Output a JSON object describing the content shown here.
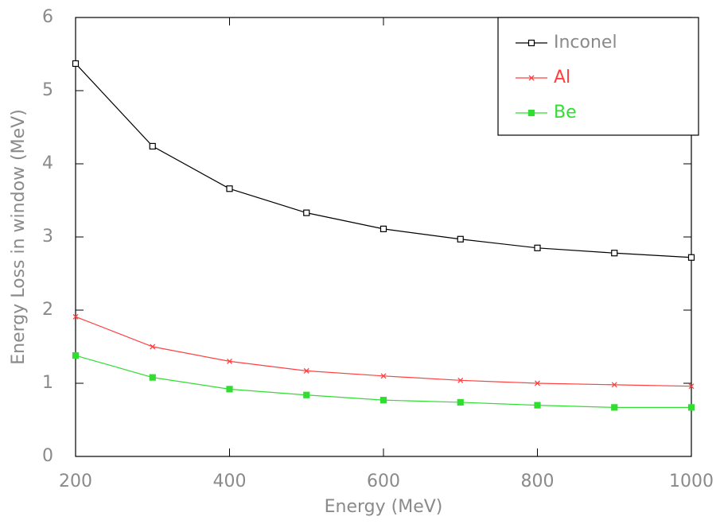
{
  "chart_data": {
    "type": "line",
    "x_label": "Energy (MeV)",
    "y_label": "Energy Loss in window (MeV)",
    "x": [
      200,
      300,
      400,
      500,
      600,
      700,
      800,
      900,
      1000
    ],
    "series": [
      {
        "name": "Inconel",
        "color": "#000000",
        "marker": "open-square",
        "values": [
          5.37,
          4.24,
          3.66,
          3.33,
          3.11,
          2.97,
          2.85,
          2.78,
          2.72
        ]
      },
      {
        "name": "Al",
        "color": "#ff4040",
        "marker": "cross",
        "values": [
          1.91,
          1.5,
          1.3,
          1.17,
          1.1,
          1.04,
          1.0,
          0.98,
          0.96
        ]
      },
      {
        "name": "Be",
        "color": "#30dd30",
        "marker": "filled-square",
        "values": [
          1.38,
          1.08,
          0.92,
          0.84,
          0.77,
          0.74,
          0.7,
          0.67,
          0.67
        ]
      }
    ],
    "xlim": [
      200,
      1000
    ],
    "xticks": [
      200,
      400,
      600,
      800,
      1000
    ],
    "ylim": [
      0,
      6
    ],
    "yticks": [
      0,
      1,
      2,
      3,
      4,
      5,
      6
    ],
    "legend": "upper right"
  }
}
